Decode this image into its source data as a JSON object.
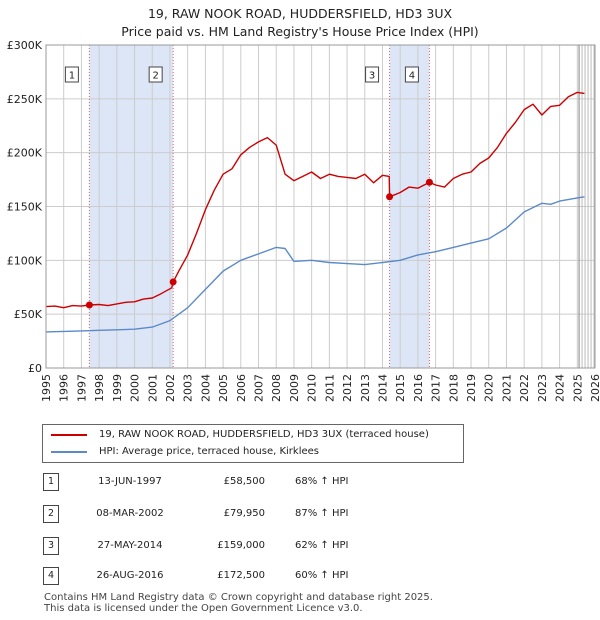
{
  "title": {
    "line1": "19, RAW NOOK ROAD, HUDDERSFIELD, HD3 3UX",
    "line2": "Price paid vs. HM Land Registry's House Price Index (HPI)"
  },
  "legend": {
    "property": "19, RAW NOOK ROAD, HUDDERSFIELD, HD3 3UX (terraced house)",
    "hpi": "HPI: Average price, terraced house, Kirklees"
  },
  "sales": [
    {
      "num": "1",
      "date": "13-JUN-1997",
      "price": "£58,500",
      "hpi": "68% ↑ HPI"
    },
    {
      "num": "2",
      "date": "08-MAR-2002",
      "price": "£79,950",
      "hpi": "87% ↑ HPI"
    },
    {
      "num": "3",
      "date": "27-MAY-2014",
      "price": "£159,000",
      "hpi": "62% ↑ HPI"
    },
    {
      "num": "4",
      "date": "26-AUG-2016",
      "price": "£172,500",
      "hpi": "60% ↑ HPI"
    }
  ],
  "footer": {
    "line1": "Contains HM Land Registry data © Crown copyright and database right 2025.",
    "line2": "This data is licensed under the Open Government Licence v3.0."
  },
  "colors": {
    "property": "#cc0000",
    "hpi": "#5b8ac9",
    "shade": "#dde6f7",
    "grid": "#cccccc",
    "marker": "#cc0000"
  },
  "chart_data": {
    "type": "line",
    "xlim": [
      1995,
      2026
    ],
    "ylim": [
      0,
      300000
    ],
    "x_ticks": [
      1995,
      1996,
      1997,
      1998,
      1999,
      2000,
      2001,
      2002,
      2003,
      2004,
      2005,
      2006,
      2007,
      2008,
      2009,
      2010,
      2011,
      2012,
      2013,
      2014,
      2015,
      2016,
      2017,
      2018,
      2019,
      2020,
      2021,
      2022,
      2023,
      2024,
      2025,
      2026
    ],
    "y_ticks": [
      {
        "value": 0,
        "label": "£0"
      },
      {
        "value": 50000,
        "label": "£50K"
      },
      {
        "value": 100000,
        "label": "£100K"
      },
      {
        "value": 150000,
        "label": "£150K"
      },
      {
        "value": 200000,
        "label": "£200K"
      },
      {
        "value": 250000,
        "label": "£250K"
      },
      {
        "value": 300000,
        "label": "£300K"
      }
    ],
    "shaded_ranges": [
      [
        1997.45,
        2002.18
      ],
      [
        2014.4,
        2016.65
      ]
    ],
    "forecast_start": 2025.1,
    "sale_points": [
      {
        "label": "1",
        "x": 1997.45,
        "y": 58500
      },
      {
        "label": "2",
        "x": 2002.18,
        "y": 79950
      },
      {
        "label": "3",
        "x": 2014.4,
        "y": 159000
      },
      {
        "label": "4",
        "x": 2016.65,
        "y": 172500
      }
    ],
    "series": [
      {
        "name": "19, RAW NOOK ROAD, HUDDERSFIELD, HD3 3UX (terraced house)",
        "x": [
          1995,
          1995.5,
          1996,
          1996.5,
          1997,
          1997.45,
          1998,
          1998.5,
          1999,
          1999.5,
          2000,
          2000.5,
          2001,
          2001.5,
          2002.1,
          2002.18,
          2002.5,
          2003,
          2003.5,
          2004,
          2004.5,
          2005,
          2005.5,
          2006,
          2006.5,
          2007,
          2007.5,
          2008,
          2008.5,
          2009,
          2009.5,
          2010,
          2010.5,
          2011,
          2011.5,
          2012,
          2012.5,
          2013,
          2013.5,
          2014,
          2014.38,
          2014.4,
          2015,
          2015.5,
          2016,
          2016.65,
          2017,
          2017.5,
          2018,
          2018.5,
          2019,
          2019.5,
          2020,
          2020.5,
          2021,
          2021.5,
          2022,
          2022.5,
          2023,
          2023.5,
          2024,
          2024.5,
          2025,
          2025.4
        ],
        "y": [
          57000,
          57500,
          56000,
          58000,
          57500,
          58500,
          59000,
          58000,
          59500,
          61000,
          61500,
          64000,
          65000,
          69000,
          74500,
          79950,
          90000,
          105000,
          125000,
          147000,
          165000,
          180000,
          185000,
          198000,
          205000,
          210000,
          214000,
          207000,
          180000,
          174000,
          178000,
          182000,
          176000,
          180000,
          178000,
          177000,
          176000,
          180000,
          172000,
          179000,
          178000,
          159000,
          163000,
          168000,
          167000,
          172500,
          170000,
          168000,
          176000,
          180000,
          182000,
          190000,
          195000,
          205000,
          218000,
          228000,
          240000,
          245000,
          235000,
          243000,
          244000,
          252000,
          256000,
          255000
        ]
      },
      {
        "name": "HPI: Average price, terraced house, Kirklees",
        "x": [
          1995,
          1996,
          1997,
          1998,
          1999,
          2000,
          2001,
          2002,
          2003,
          2004,
          2005,
          2006,
          2007,
          2008,
          2008.5,
          2009,
          2010,
          2011,
          2012,
          2013,
          2014,
          2015,
          2016,
          2017,
          2018,
          2019,
          2020,
          2021,
          2022,
          2023,
          2023.5,
          2024,
          2025,
          2025.4
        ],
        "y": [
          33500,
          34000,
          34500,
          35000,
          35500,
          36000,
          38000,
          44000,
          56000,
          73000,
          90000,
          100000,
          106000,
          112000,
          111000,
          99000,
          100000,
          98000,
          97000,
          96000,
          98000,
          100000,
          105000,
          108000,
          112000,
          116000,
          120000,
          130000,
          145000,
          153000,
          152000,
          155000,
          158000,
          159000
        ]
      }
    ]
  }
}
